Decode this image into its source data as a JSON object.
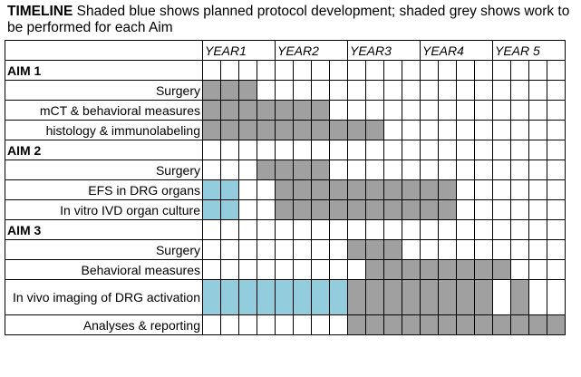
{
  "caption": {
    "title": "TIMELINE",
    "text": " Shaded blue shows planned protocol development; shaded grey shows work to be performed for each Aim"
  },
  "colors": {
    "grey": "#a0a0a0",
    "blue": "#93cddd"
  },
  "years": [
    "YEAR1",
    "YEAR2",
    "YEAR3",
    "YEAR4",
    "YEAR 5"
  ],
  "quarters_per_year": 4,
  "sections": [
    {
      "title": "AIM 1",
      "rows": [
        {
          "label": "Surgery",
          "cells": "ggg................."
        },
        {
          "label": "mCT & behavioral measures",
          "cells": "ggggggg............."
        },
        {
          "label": "histology & immunolabeling",
          "cells": "gggggggggg.........."
        }
      ]
    },
    {
      "title": "AIM 2",
      "rows": [
        {
          "label": "Surgery",
          "cells": "...gggg............."
        },
        {
          "label": "EFS in DRG organs",
          "cells": "bb..gggggggggg......"
        },
        {
          "label": "In vitro IVD organ culture",
          "cells": "bb..gggggggggg......"
        }
      ]
    },
    {
      "title": "AIM 3",
      "rows": [
        {
          "label": "Surgery",
          "cells": "........ggg........."
        },
        {
          "label": "Behavioral measures",
          "cells": ".........gggggggg...."
        },
        {
          "label": "In vivo imaging of DRG activation",
          "cells": "bbbbbbbbgggggggg.g..",
          "tall": true
        },
        {
          "label": "Analyses & reporting",
          "cells": "........gggggggggggg"
        }
      ]
    }
  ]
}
